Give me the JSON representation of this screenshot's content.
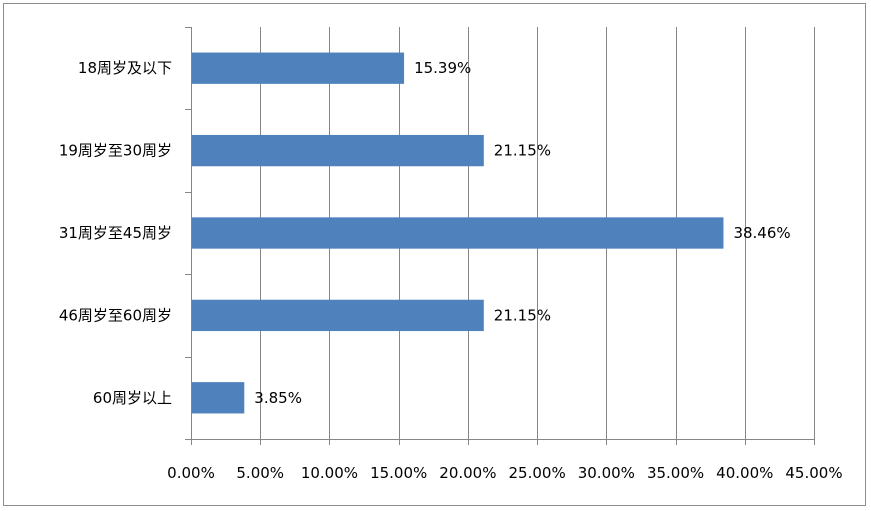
{
  "chart_data": {
    "type": "bar",
    "orientation": "horizontal",
    "title": "",
    "xlabel": "",
    "ylabel": "",
    "categories": [
      "18周岁及以下",
      "19周岁至30周岁",
      "31周岁至45周岁",
      "46周岁至60周岁",
      "60周岁以上"
    ],
    "values": [
      15.39,
      21.15,
      38.46,
      21.15,
      3.85
    ],
    "value_labels": [
      "15.39%",
      "21.15%",
      "38.46%",
      "21.15%",
      "3.85%"
    ],
    "xlim": [
      0,
      45
    ],
    "x_ticks": [
      0,
      5,
      10,
      15,
      20,
      25,
      30,
      35,
      40,
      45
    ],
    "x_tick_labels": [
      "0.00%",
      "5.00%",
      "10.00%",
      "15.00%",
      "20.00%",
      "25.00%",
      "30.00%",
      "35.00%",
      "40.00%",
      "45.00%"
    ],
    "grid": "vertical",
    "legend": "none",
    "colors": {
      "bar": "#4f81bd",
      "grid": "#868686",
      "axis": "#868686"
    }
  }
}
